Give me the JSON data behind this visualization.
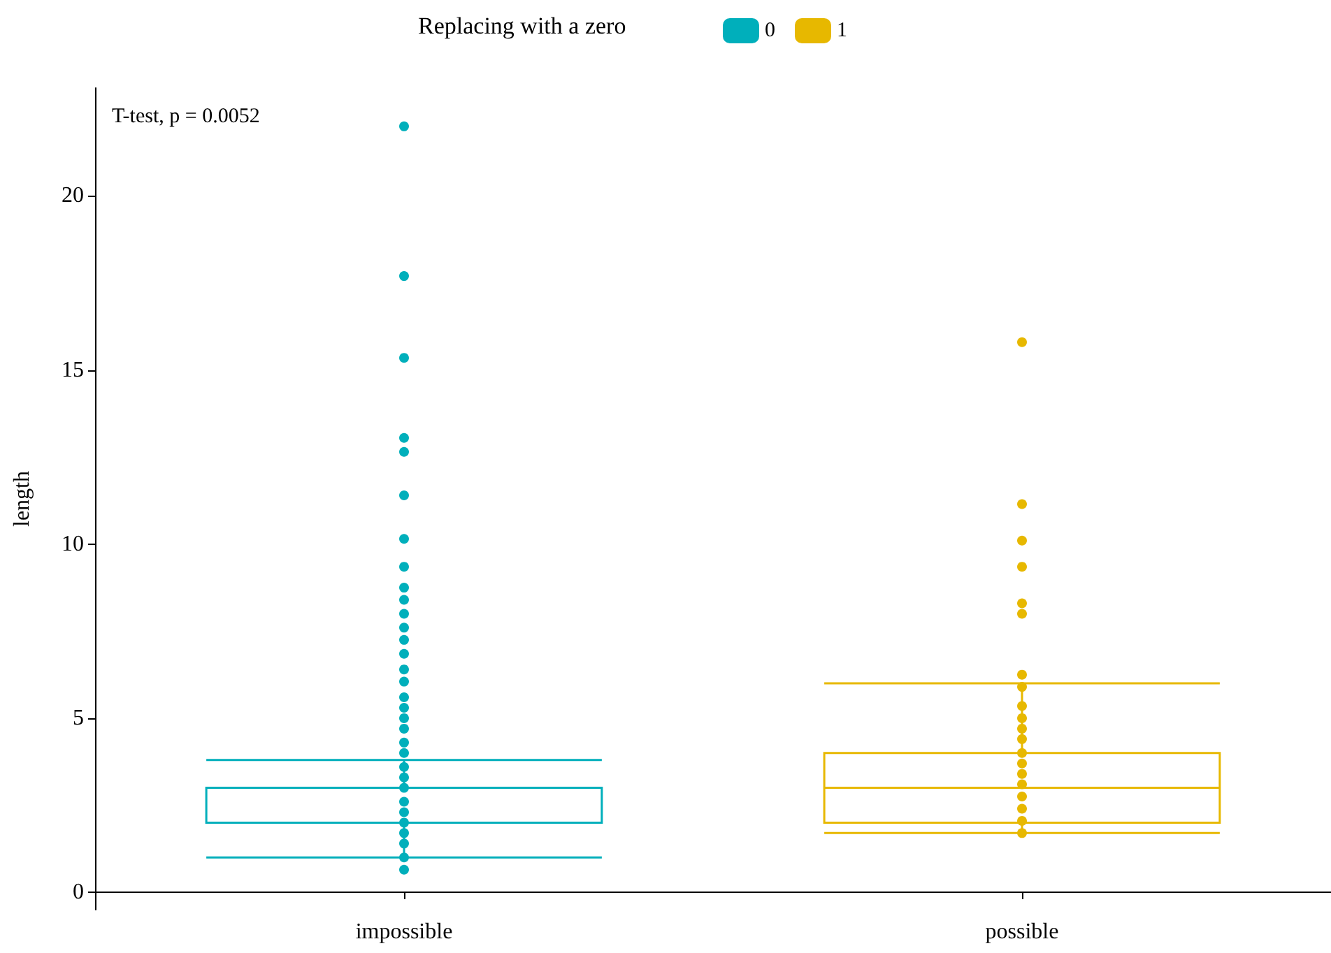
{
  "chart_data": {
    "type": "box",
    "categories": [
      "impossible",
      "possible"
    ],
    "ylabel": "length",
    "legend_title": "Replacing with a zero",
    "legend": "top",
    "annotations": [
      "T-test, p = 0.0052"
    ],
    "ylim": [
      -0.5,
      23.1
    ],
    "yticks": [
      0,
      5,
      10,
      15,
      20
    ],
    "grid": false,
    "series": [
      {
        "name": "0",
        "color": "#00afbb",
        "boxes": [
          {
            "low": 1.0,
            "q1": 2,
            "median": 2,
            "q3": 3,
            "high": 3.8
          },
          null
        ]
      },
      {
        "name": "1",
        "color": "#e7b800",
        "boxes": [
          null,
          {
            "low": 1.7,
            "q1": 2,
            "median": 3,
            "q3": 4,
            "high": 6
          }
        ]
      },
      {
        "type": "scatter",
        "color": "#00afbb",
        "x": [
          "impossible",
          "impossible",
          "impossible",
          "impossible",
          "impossible",
          "impossible",
          "impossible",
          "impossible",
          "impossible",
          "impossible",
          "impossible",
          "impossible",
          "impossible",
          "impossible",
          "impossible",
          "impossible",
          "impossible",
          "impossible",
          "impossible",
          "impossible",
          "impossible",
          "impossible",
          "impossible",
          "impossible",
          "impossible",
          "impossible",
          "impossible",
          "impossible",
          "impossible",
          "impossible",
          "impossible",
          "impossible"
        ],
        "values": [
          22,
          17.7,
          15.35,
          13.05,
          12.65,
          11.4,
          10.15,
          9.35,
          8.75,
          8.4,
          8.0,
          7.6,
          7.25,
          6.85,
          6.4,
          6.05,
          5.6,
          5.3,
          5.0,
          4.7,
          4.3,
          4.0,
          3.6,
          3.3,
          3.0,
          2.6,
          2.3,
          2.0,
          1.7,
          1.4,
          1.0,
          0.65
        ]
      },
      {
        "type": "scatter",
        "color": "#e7b800",
        "x": [
          "possible",
          "possible",
          "possible",
          "possible",
          "possible",
          "possible",
          "possible",
          "possible",
          "possible",
          "possible",
          "possible",
          "possible",
          "possible",
          "possible",
          "possible",
          "possible",
          "possible",
          "possible",
          "possible",
          "possible"
        ],
        "values": [
          15.8,
          11.15,
          10.1,
          9.35,
          8.3,
          8.0,
          6.25,
          5.9,
          5.35,
          5.0,
          4.7,
          4.4,
          4.0,
          3.7,
          3.4,
          3.1,
          2.75,
          2.4,
          2.05,
          1.7
        ]
      }
    ]
  }
}
